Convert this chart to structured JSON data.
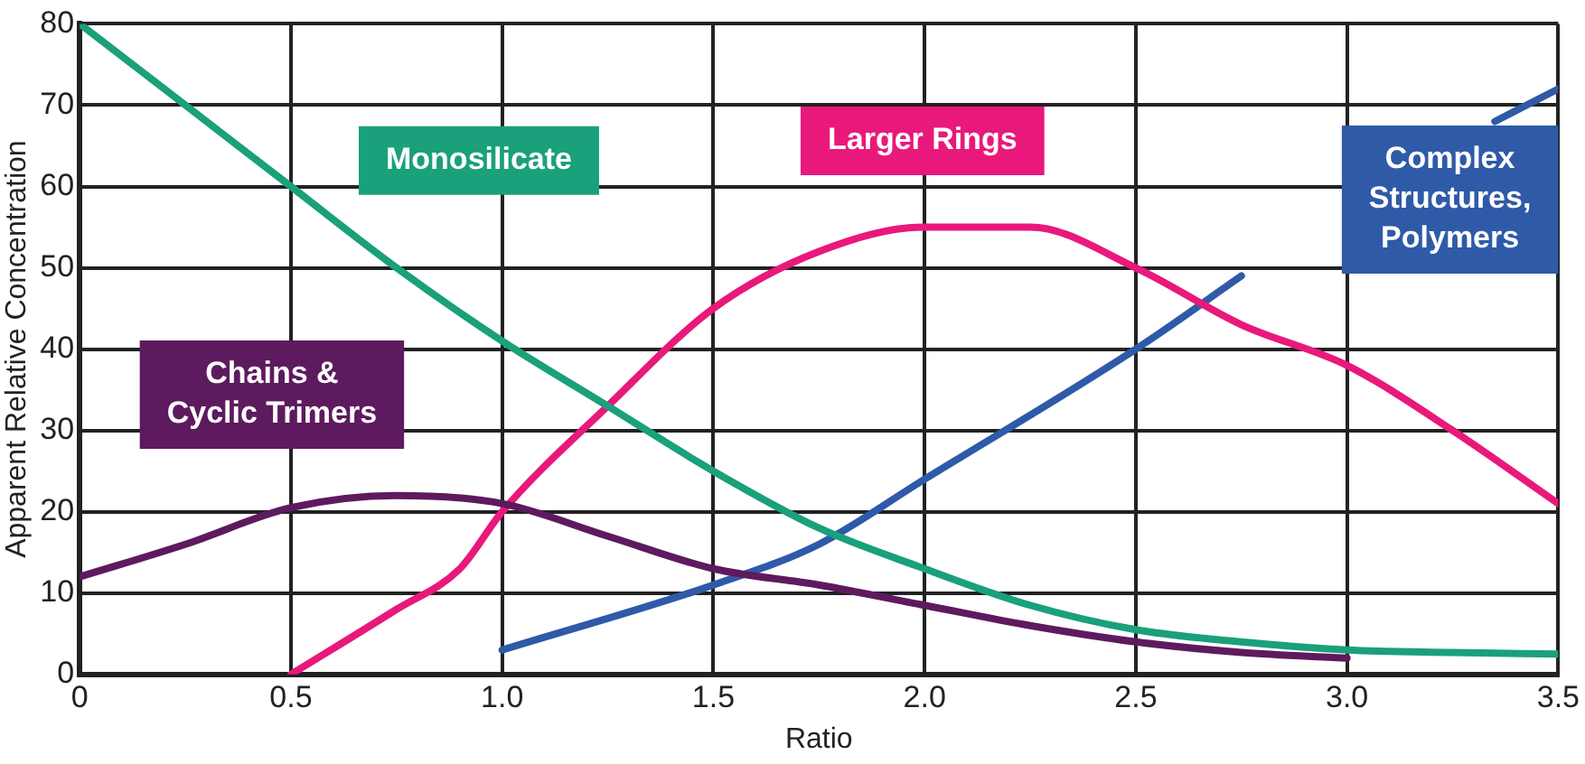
{
  "chart_data": {
    "type": "line",
    "xlabel": "Ratio",
    "ylabel": "Apparent Relative Concentration",
    "xlim": [
      0,
      3.5
    ],
    "ylim": [
      0,
      80
    ],
    "xticks": [
      0,
      0.5,
      {
        "value": 1,
        "label": "1.0"
      },
      1.5,
      {
        "value": 2,
        "label": "2.0"
      },
      2.5,
      {
        "value": 3,
        "label": "3.0"
      },
      3.5
    ],
    "yticks": [
      0,
      10,
      20,
      30,
      40,
      50,
      60,
      70,
      80
    ],
    "grid": true,
    "legend": false,
    "marker": "none",
    "line_style": "solid",
    "series": [
      {
        "name": "Monosilicate",
        "color": "#1aa07a",
        "x": [
          0,
          0.25,
          0.5,
          0.75,
          1.0,
          1.25,
          1.5,
          1.75,
          2.0,
          2.25,
          2.5,
          2.75,
          3.0,
          3.25,
          3.5
        ],
        "values": [
          80,
          70,
          60,
          50,
          41,
          33,
          25,
          18,
          13,
          8.5,
          5.5,
          4,
          3,
          2.7,
          2.5
        ]
      },
      {
        "name": "Chains &\nCyclic Trimers",
        "color": "#5e1a5e",
        "x": [
          0,
          0.25,
          0.5,
          0.75,
          1.0,
          1.25,
          1.5,
          1.75,
          2.0,
          2.25,
          2.5,
          2.75,
          3.0
        ],
        "values": [
          12,
          16,
          20.5,
          22,
          21,
          17,
          13,
          11,
          8.5,
          6,
          4,
          2.7,
          2
        ]
      },
      {
        "name": "Larger Rings",
        "color": "#e8197a",
        "x": [
          0.5,
          0.75,
          0.9,
          1.0,
          1.25,
          1.5,
          1.75,
          2.0,
          2.25,
          2.5,
          2.75,
          3.0,
          3.25,
          3.5
        ],
        "values": [
          0,
          8,
          13,
          20,
          33,
          45,
          52,
          55,
          55,
          50,
          43,
          38,
          30,
          21
        ]
      },
      {
        "name": "Complex\nStructures,\nPolymers",
        "color": "#2f5aa8",
        "x": [
          1.0,
          1.5,
          1.75,
          2.0,
          2.5,
          2.75,
          3.0,
          3.35,
          3.5
        ],
        "values": [
          3,
          11,
          16,
          24,
          40,
          49,
          null,
          68,
          72
        ]
      }
    ]
  }
}
